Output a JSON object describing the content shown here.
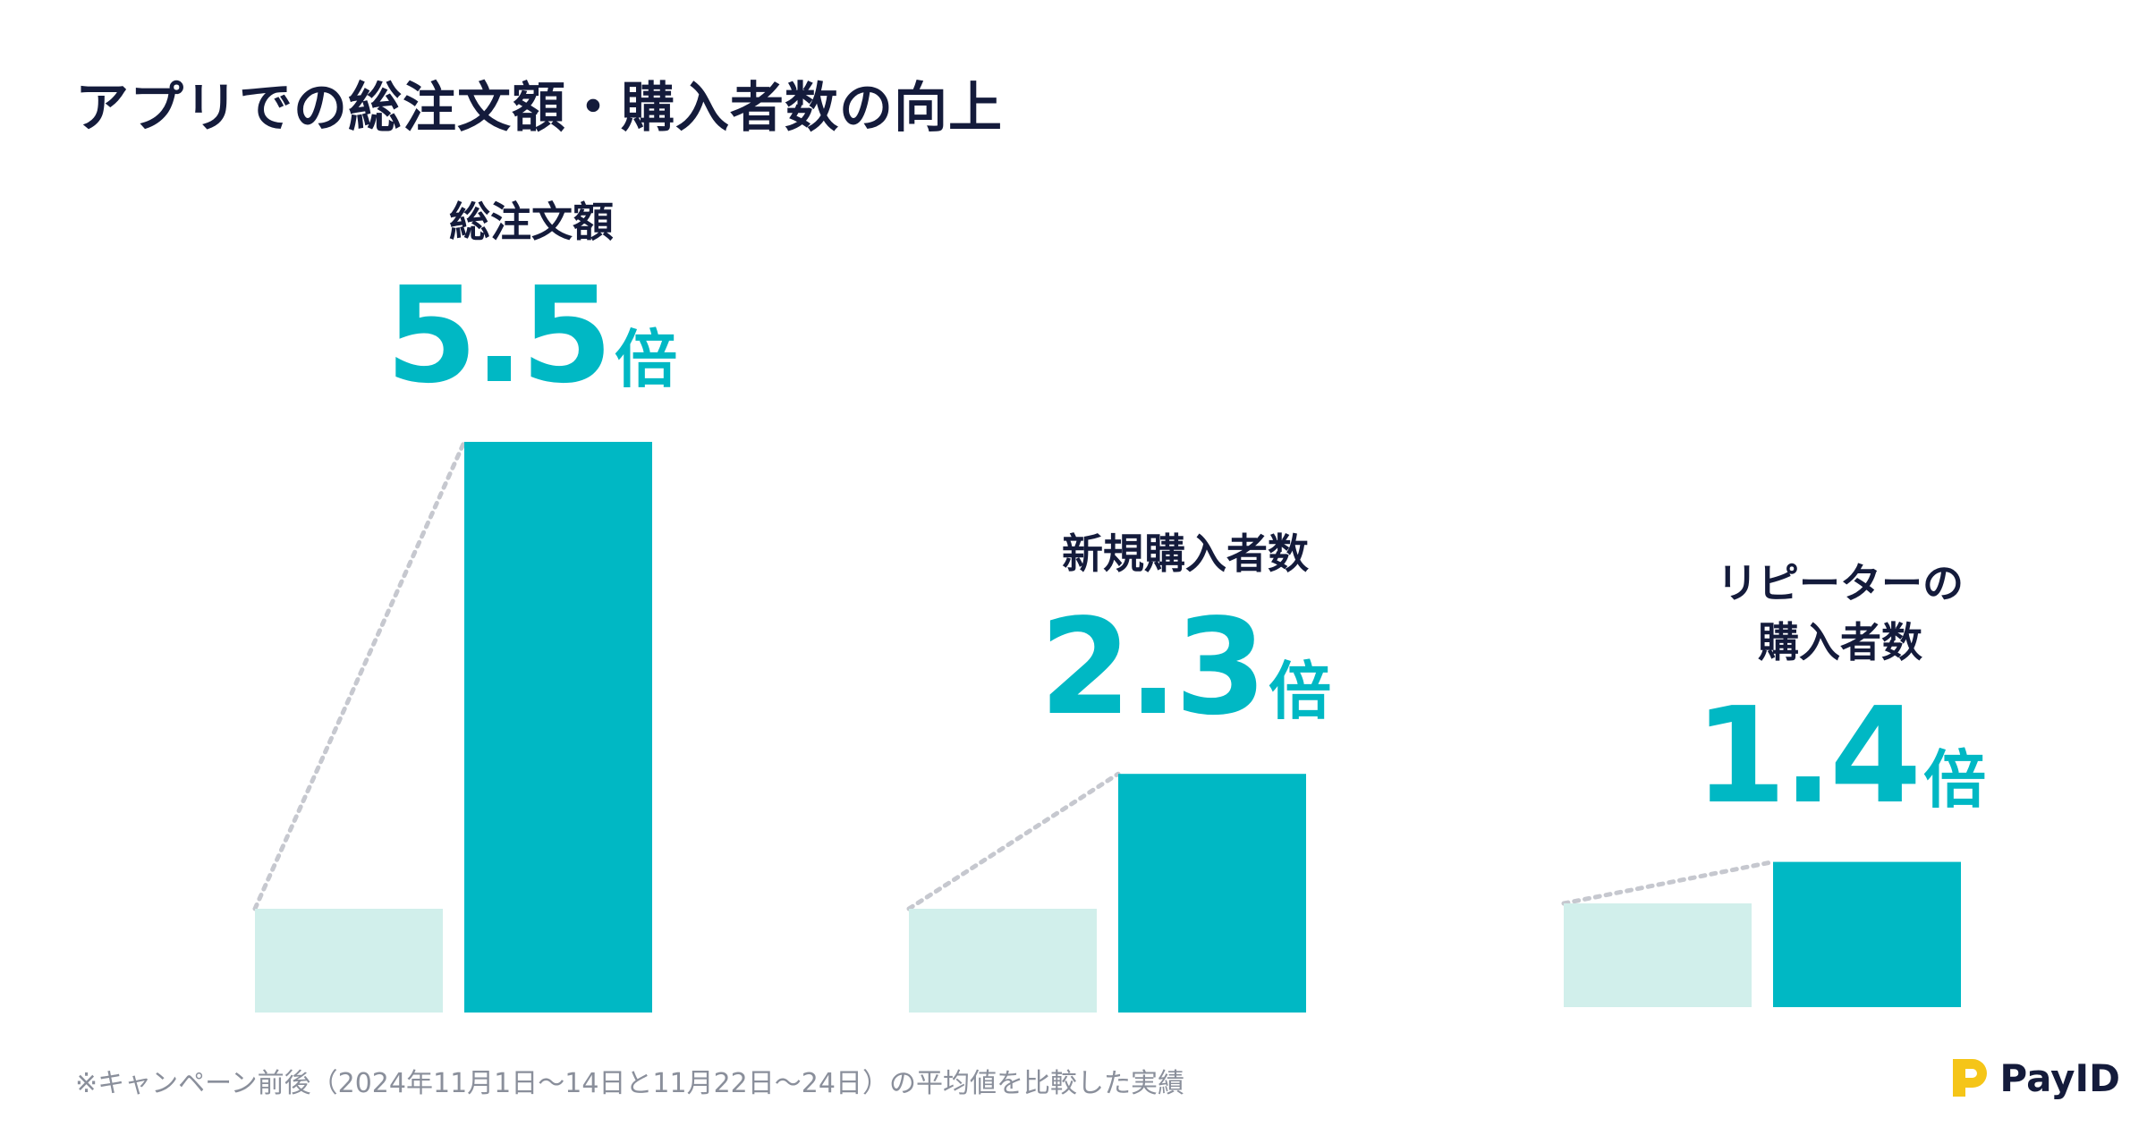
{
  "page_title": "アプリでの総注文額・購入者数の向上",
  "footnote": "※キャンペーン前後（2024年11月1日〜14日と11月22日〜24日）の平均値を比較した実績",
  "logo_text": "PayID",
  "colors": {
    "before": "#d1efeb",
    "after": "#00b8c4",
    "connector": "#c6c8cf",
    "title": "#141b3b",
    "logo_accent": "#f5c518"
  },
  "chart_data": {
    "type": "bar",
    "groups": [
      {
        "label": "総注文額",
        "multiplier_value": "5.5",
        "multiplier_unit": "倍",
        "before": 1.0,
        "after": 5.5
      },
      {
        "label": "新規購入者数",
        "multiplier_value": "2.3",
        "multiplier_unit": "倍",
        "before": 1.0,
        "after": 2.3
      },
      {
        "label": "リピーターの\n購入者数",
        "multiplier_value": "1.4",
        "multiplier_unit": "倍",
        "before": 1.0,
        "after": 1.4
      }
    ]
  }
}
